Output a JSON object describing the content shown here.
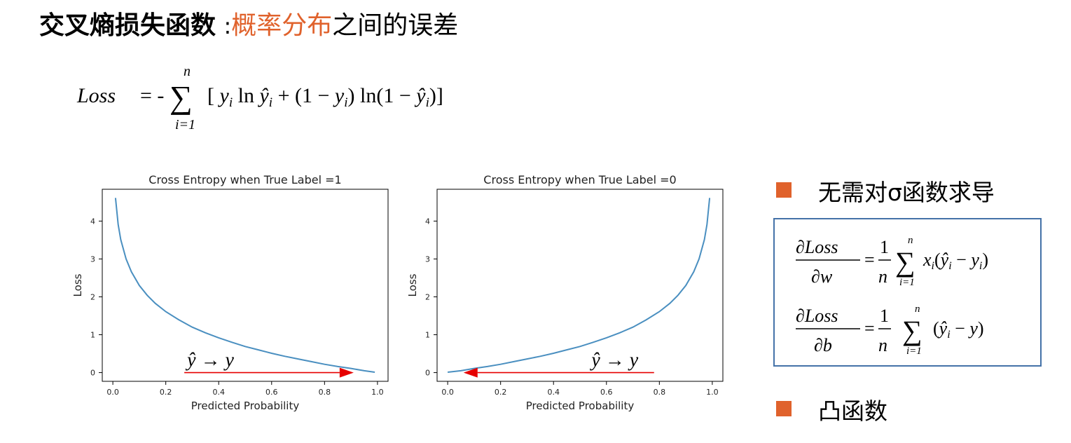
{
  "heading": {
    "bold": "交叉熵损失函数",
    "separator": ":",
    "highlight": "概率分布",
    "rest": "之间的误差",
    "highlight_color": "#e0622c"
  },
  "formula_loss": {
    "lhs": "Loss",
    "eq": "= -",
    "sum_top": "n",
    "sum_bottom": "i=1"
  },
  "bullets": [
    {
      "text": "无需对σ函数求导",
      "color": "#e0622c"
    },
    {
      "text": "凸函数",
      "color": "#e0622c"
    }
  ],
  "derivatives": {
    "dw": {
      "num": "∂Loss",
      "den": "∂w",
      "frac_num": "1",
      "frac_den": "n",
      "sum_top": "n",
      "sum_bottom": "i=1"
    },
    "db": {
      "num": "∂Loss",
      "den": "∂b",
      "frac_num": "1",
      "frac_den": "n",
      "sum_top": "n",
      "sum_bottom": "i=1"
    },
    "box_color": "#4472a8"
  },
  "chart_data": [
    {
      "type": "line",
      "title": "Cross Entropy when True Label =1",
      "xlabel": "Predicted Probability",
      "ylabel": "Loss",
      "xlim": [
        -0.04,
        1.04
      ],
      "ylim": [
        -0.23,
        4.84
      ],
      "xticks": [
        0.0,
        0.2,
        0.4,
        0.6,
        0.8,
        1.0
      ],
      "xtick_labels": [
        "0.0",
        "0.2",
        "0.4",
        "0.6",
        "0.8",
        "1.0"
      ],
      "yticks": [
        0,
        1,
        2,
        3,
        4
      ],
      "ytick_labels": [
        "0",
        "1",
        "2",
        "3",
        "4"
      ],
      "grid": false,
      "line_color": "#4a8fc0",
      "series": [
        {
          "x": [
            0.01,
            0.02,
            0.03,
            0.05,
            0.07,
            0.1,
            0.13,
            0.16,
            0.2,
            0.25,
            0.3,
            0.35,
            0.4,
            0.45,
            0.5,
            0.55,
            0.6,
            0.65,
            0.7,
            0.75,
            0.8,
            0.85,
            0.9,
            0.95,
            0.99
          ],
          "y": [
            4.61,
            3.91,
            3.51,
            3.0,
            2.66,
            2.3,
            2.04,
            1.83,
            1.61,
            1.39,
            1.2,
            1.05,
            0.92,
            0.8,
            0.69,
            0.6,
            0.51,
            0.43,
            0.36,
            0.29,
            0.22,
            0.16,
            0.11,
            0.05,
            0.01
          ]
        }
      ],
      "annotation": {
        "text": "ŷ → y",
        "arrow_from": [
          0.27,
          0.0
        ],
        "arrow_to": [
          0.91,
          0.0
        ],
        "arrow_color": "#e60000"
      }
    },
    {
      "type": "line",
      "title": "Cross Entropy when True Label =0",
      "xlabel": "Predicted Probability",
      "ylabel": "Loss",
      "xlim": [
        -0.04,
        1.04
      ],
      "ylim": [
        -0.23,
        4.84
      ],
      "xticks": [
        0.0,
        0.2,
        0.4,
        0.6,
        0.8,
        1.0
      ],
      "xtick_labels": [
        "0.0",
        "0.2",
        "0.4",
        "0.6",
        "0.8",
        "1.0"
      ],
      "yticks": [
        0,
        1,
        2,
        3,
        4
      ],
      "ytick_labels": [
        "0",
        "1",
        "2",
        "3",
        "4"
      ],
      "grid": false,
      "line_color": "#4a8fc0",
      "series": [
        {
          "x": [
            0.0,
            0.05,
            0.1,
            0.15,
            0.2,
            0.25,
            0.3,
            0.35,
            0.4,
            0.45,
            0.5,
            0.55,
            0.6,
            0.65,
            0.7,
            0.75,
            0.8,
            0.84,
            0.87,
            0.9,
            0.93,
            0.95,
            0.97,
            0.98,
            0.99
          ],
          "y": [
            0.01,
            0.05,
            0.11,
            0.16,
            0.22,
            0.29,
            0.36,
            0.43,
            0.51,
            0.6,
            0.69,
            0.8,
            0.92,
            1.05,
            1.2,
            1.39,
            1.61,
            1.83,
            2.04,
            2.3,
            2.66,
            3.0,
            3.51,
            3.91,
            4.61
          ]
        }
      ],
      "annotation": {
        "text": "ŷ → y",
        "arrow_from": [
          0.78,
          0.0
        ],
        "arrow_to": [
          0.06,
          0.0
        ],
        "arrow_color": "#e60000"
      }
    }
  ]
}
